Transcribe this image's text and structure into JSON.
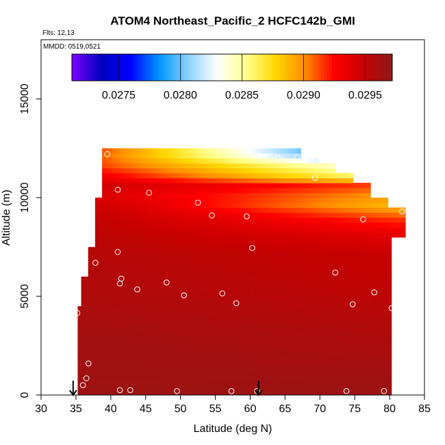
{
  "chart_data": {
    "type": "heatmap",
    "title": "ATOM4 Northeast_Pacific_2 HCFC142b_GMI",
    "annotations": [
      "Flts: 12,13",
      "MMDD: 0519,0521"
    ],
    "xlabel": "Latitude (deg N)",
    "ylabel": "Altitude (m)",
    "xlim": [
      30,
      85
    ],
    "ylim": [
      0,
      18000
    ],
    "x_ticks": [
      "30",
      "35",
      "40",
      "45",
      "50",
      "55",
      "60",
      "65",
      "70",
      "75",
      "80",
      "85"
    ],
    "y_ticks": [
      "0",
      "5000",
      "10000",
      "15000"
    ],
    "colorbar": {
      "range": [
        0.02712,
        0.02972
      ],
      "ticks": [
        "0.0275",
        "0.0280",
        "0.0285",
        "0.0290",
        "0.0295"
      ],
      "tick_values": [
        0.0275,
        0.028,
        0.0285,
        0.029,
        0.0295
      ],
      "colors": [
        "#7f00ff",
        "#0000bf",
        "#0000ff",
        "#0096ff",
        "#8cd2ff",
        "#ffffff",
        "#ffff8c",
        "#ffd700",
        "#ff8c00",
        "#ff0000",
        "#c80000",
        "#8b1a1a"
      ]
    },
    "field_columns": [
      {
        "lat": 35.5,
        "top": 4500
      },
      {
        "lat": 36.5,
        "top": 6000
      },
      {
        "lat": 37.5,
        "top": 7500
      },
      {
        "lat": 38.5,
        "top": 10000
      },
      {
        "lat": 39.5,
        "top": 12400
      },
      {
        "lat": 45.0,
        "top": 12400
      },
      {
        "lat": 55.0,
        "top": 12400
      },
      {
        "lat": 62.0,
        "top": 12400
      },
      {
        "lat": 67.0,
        "top": 12400
      },
      {
        "lat": 69.5,
        "top": 12000
      },
      {
        "lat": 72.0,
        "top": 11600
      },
      {
        "lat": 74.5,
        "top": 11200
      },
      {
        "lat": 77.0,
        "top": 10700
      },
      {
        "lat": 79.5,
        "top": 10000
      },
      {
        "lat": 81.0,
        "top": 9500
      },
      {
        "lat": 82.0,
        "top": 9300
      }
    ],
    "field_bottom": {
      "lat_min": 35.3,
      "lat_max": 79.5
    },
    "field_layers": [
      {
        "alt": 0,
        "lat_lo": 0.02965,
        "lat_hi": 0.02965
      },
      {
        "alt": 3000,
        "lat_lo": 0.02962,
        "lat_hi": 0.02958
      },
      {
        "alt": 5000,
        "lat_lo": 0.02958,
        "lat_hi": 0.02952
      },
      {
        "alt": 7000,
        "lat_lo": 0.02955,
        "lat_hi": 0.02948
      },
      {
        "alt": 8000,
        "lat_lo": 0.02953,
        "lat_hi": 0.02935
      },
      {
        "alt": 8800,
        "lat_lo": 0.0295,
        "lat_hi": 0.02915
      },
      {
        "alt": 9500,
        "lat_lo": 0.02945,
        "lat_hi": 0.02885
      },
      {
        "alt": 10000,
        "lat_lo": 0.0294,
        "lat_hi": 0.02895
      },
      {
        "alt": 10500,
        "lat_lo": 0.02945,
        "lat_hi": 0.0291
      },
      {
        "alt": 11000,
        "lat_lo": 0.0293,
        "lat_hi": 0.02845
      },
      {
        "alt": 11500,
        "lat_lo": 0.02915,
        "lat_hi": 0.0282
      },
      {
        "alt": 12000,
        "lat_lo": 0.0291,
        "lat_hi": 0.0276
      },
      {
        "alt": 12400,
        "lat_lo": 0.02915,
        "lat_hi": 0.02735
      }
    ],
    "samples": [
      {
        "lat": 39.5,
        "alt": 12200
      },
      {
        "lat": 41.0,
        "alt": 10400
      },
      {
        "lat": 45.5,
        "alt": 10250
      },
      {
        "lat": 52.5,
        "alt": 9750
      },
      {
        "lat": 54.5,
        "alt": 9100
      },
      {
        "lat": 59.5,
        "alt": 9050
      },
      {
        "lat": 64.0,
        "alt": 12000
      },
      {
        "lat": 66.7,
        "alt": 12050
      },
      {
        "lat": 69.3,
        "alt": 11000
      },
      {
        "lat": 76.2,
        "alt": 8900
      },
      {
        "lat": 81.8,
        "alt": 9300
      },
      {
        "lat": 41.0,
        "alt": 7250
      },
      {
        "lat": 37.8,
        "alt": 6700
      },
      {
        "lat": 41.5,
        "alt": 5900
      },
      {
        "lat": 41.3,
        "alt": 5650
      },
      {
        "lat": 43.8,
        "alt": 5350
      },
      {
        "lat": 48.0,
        "alt": 5700
      },
      {
        "lat": 50.5,
        "alt": 5050
      },
      {
        "lat": 56.0,
        "alt": 5150
      },
      {
        "lat": 58.0,
        "alt": 4650
      },
      {
        "lat": 60.3,
        "alt": 7450
      },
      {
        "lat": 72.2,
        "alt": 6200
      },
      {
        "lat": 74.7,
        "alt": 4600
      },
      {
        "lat": 77.8,
        "alt": 5200
      },
      {
        "lat": 80.3,
        "alt": 4400
      },
      {
        "lat": 35.2,
        "alt": 4150
      },
      {
        "lat": 36.8,
        "alt": 1600
      },
      {
        "lat": 36.5,
        "alt": 850
      },
      {
        "lat": 36.0,
        "alt": 500
      },
      {
        "lat": 41.3,
        "alt": 250
      },
      {
        "lat": 42.8,
        "alt": 250
      },
      {
        "lat": 49.5,
        "alt": 200
      },
      {
        "lat": 57.3,
        "alt": 200
      },
      {
        "lat": 61.0,
        "alt": 200
      },
      {
        "lat": 73.8,
        "alt": 200
      },
      {
        "lat": 79.2,
        "alt": 200
      }
    ],
    "arrows": [
      {
        "lat": 34.6
      },
      {
        "lat": 61.2
      }
    ]
  }
}
